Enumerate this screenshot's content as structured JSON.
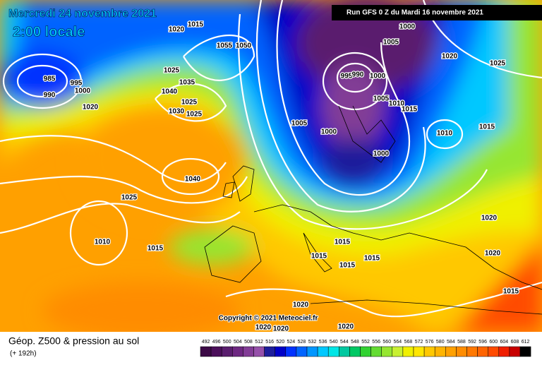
{
  "header": {
    "date": "Mercredi 24 novembre 2021",
    "time": "2:00 locale",
    "run": "Run GFS 0 Z du Mardi 16 novembre 2021"
  },
  "copyright": "Copyright © 2021 Meteociel.fr",
  "footer": {
    "title": "Géop. Z500 & pression au sol",
    "lead": "(+ 192h)"
  },
  "isobar_labels": [
    985,
    990,
    995,
    1000,
    1020,
    1020,
    1015,
    1055,
    1050,
    1025,
    1035,
    1040,
    1025,
    1030,
    1025,
    1000,
    1005,
    1020,
    1025,
    995,
    990,
    1000,
    1005,
    1010,
    1015,
    1005,
    1000,
    1000,
    1010,
    1015,
    1040,
    1025,
    1010,
    1015,
    1015,
    1015,
    1015,
    1015,
    1020,
    1020,
    1015,
    1020,
    1020,
    1020,
    1020
  ],
  "colorbar": {
    "values": [
      492,
      496,
      500,
      504,
      508,
      512,
      516,
      520,
      524,
      528,
      532,
      536,
      540,
      544,
      548,
      552,
      556,
      560,
      564,
      568,
      572,
      576,
      580,
      584,
      588,
      592,
      596,
      600,
      604,
      608,
      612
    ],
    "colors": [
      "#3c0a46",
      "#4b0f5a",
      "#5a1e6e",
      "#6e2882",
      "#823c96",
      "#9650aa",
      "#1e1e9b",
      "#0000c8",
      "#0032ff",
      "#0064ff",
      "#0096ff",
      "#00c8ff",
      "#00e6e6",
      "#00c8a0",
      "#00c864",
      "#32d232",
      "#64dc32",
      "#96e632",
      "#c8f032",
      "#f0f000",
      "#ffe600",
      "#ffc800",
      "#ffb400",
      "#ffa000",
      "#ff8c00",
      "#ff7800",
      "#ff6400",
      "#ff4b00",
      "#f01e00",
      "#c80000",
      "#000000"
    ]
  }
}
